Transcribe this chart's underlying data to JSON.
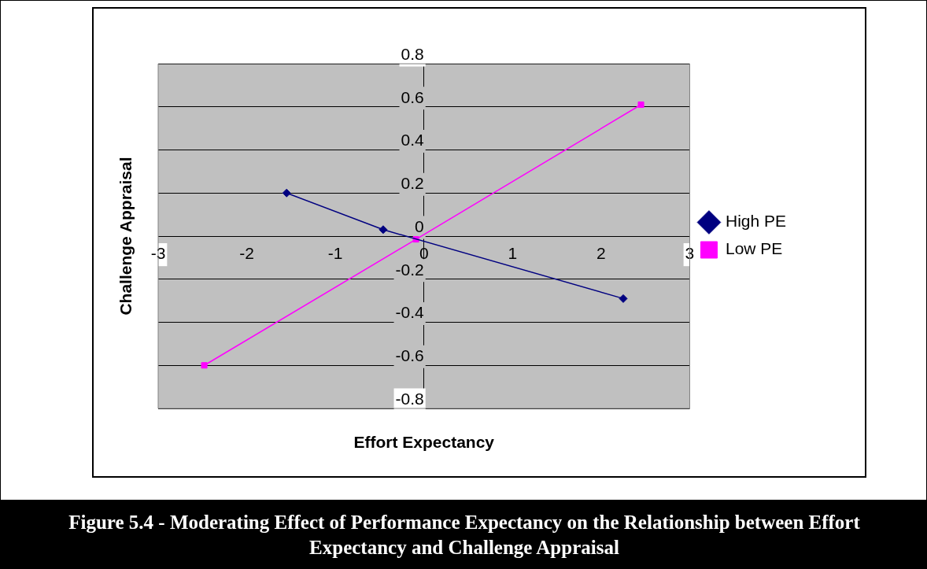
{
  "chart_data": {
    "type": "line",
    "title": "Figure 5.4 - Moderating Effect of Performance Expectancy on the Relationship between Effort Expectancy and Challenge Appraisal",
    "xlabel": "Effort Expectancy",
    "ylabel": "Challenge Appraisal",
    "series": [
      {
        "name": "High PE",
        "color": "#000080",
        "marker": "diamond",
        "x": [
          -1.55,
          -0.46,
          2.25
        ],
        "values": [
          0.2,
          0.03,
          -0.29
        ]
      },
      {
        "name": "Low PE",
        "color": "#ff00ff",
        "marker": "square",
        "x": [
          -2.48,
          -0.09,
          2.45
        ],
        "values": [
          -0.6,
          -0.015,
          0.61
        ]
      }
    ],
    "xlim": [
      -3,
      3
    ],
    "xticks": [
      -3,
      -2,
      -1,
      0,
      1,
      2,
      3
    ],
    "ylim": [
      -0.8,
      0.8
    ],
    "yticks": [
      -0.8,
      -0.6,
      -0.4,
      -0.2,
      0,
      0.2,
      0.4,
      0.6,
      0.8
    ],
    "grid": "y",
    "legend": "right",
    "line_style": "solid"
  }
}
